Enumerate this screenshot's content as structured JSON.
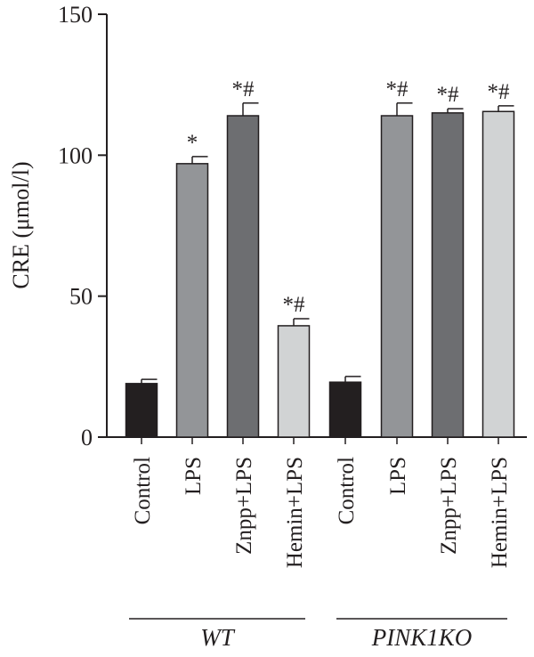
{
  "chart_data": {
    "type": "bar",
    "ylabel": "CRE (μmol/l)",
    "ylim": [
      0,
      150
    ],
    "yticks": [
      0,
      50,
      100,
      150
    ],
    "groups": [
      {
        "label": "WT",
        "categories": [
          "Control",
          "LPS",
          "Znpp+LPS",
          "Hemin+LPS"
        ]
      },
      {
        "label": "PINK1KO",
        "categories": [
          "Control",
          "LPS",
          "Znpp+LPS",
          "Hemin+LPS"
        ]
      }
    ],
    "bars": [
      {
        "group": "WT",
        "category": "Control",
        "value": 19,
        "error": 1.5,
        "annotation": "",
        "color": "#231f20"
      },
      {
        "group": "WT",
        "category": "LPS",
        "value": 97,
        "error": 2.5,
        "annotation": "*",
        "color": "#939598"
      },
      {
        "group": "WT",
        "category": "Znpp+LPS",
        "value": 114,
        "error": 4.5,
        "annotation": "*#",
        "color": "#6d6e71"
      },
      {
        "group": "WT",
        "category": "Hemin+LPS",
        "value": 39.5,
        "error": 2.5,
        "annotation": "*#",
        "color": "#d1d3d4"
      },
      {
        "group": "PINK1KO",
        "category": "Control",
        "value": 19.5,
        "error": 2,
        "annotation": "",
        "color": "#231f20"
      },
      {
        "group": "PINK1KO",
        "category": "LPS",
        "value": 114,
        "error": 4.5,
        "annotation": "*#",
        "color": "#939598"
      },
      {
        "group": "PINK1KO",
        "category": "Znpp+LPS",
        "value": 115,
        "error": 1.5,
        "annotation": "*#",
        "color": "#6d6e71"
      },
      {
        "group": "PINK1KO",
        "category": "Hemin+LPS",
        "value": 115.5,
        "error": 2,
        "annotation": "*#",
        "color": "#d1d3d4"
      }
    ]
  }
}
